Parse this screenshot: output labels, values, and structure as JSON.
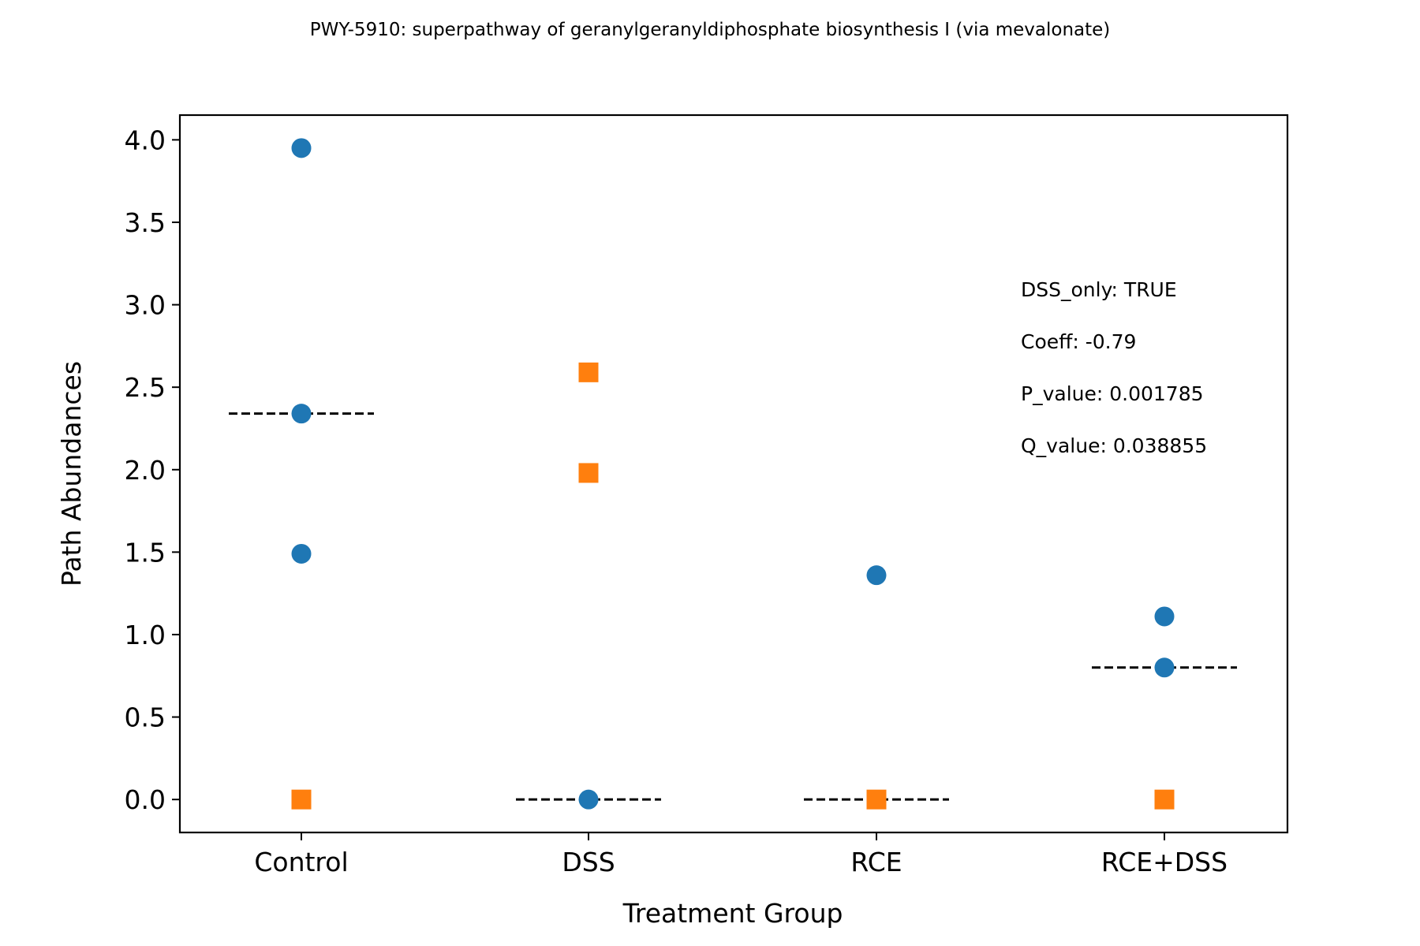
{
  "chart_data": {
    "type": "scatter",
    "title": "PWY-5910: superpathway of geranylgeranyldiphosphate biosynthesis I (via mevalonate)",
    "xlabel": "Treatment Group",
    "ylabel": "Path Abundances",
    "categories": [
      "Control",
      "DSS",
      "RCE",
      "RCE+DSS"
    ],
    "ylim": [
      -0.2,
      4.15
    ],
    "yticks": [
      "0.0",
      "0.5",
      "1.0",
      "1.5",
      "2.0",
      "2.5",
      "3.0",
      "3.5",
      "4.0"
    ],
    "grid": false,
    "series": [
      {
        "marker": "circle",
        "color": "#1f77b4",
        "points": [
          {
            "category": "Control",
            "y": 3.95
          },
          {
            "category": "Control",
            "y": 2.34
          },
          {
            "category": "Control",
            "y": 1.49
          },
          {
            "category": "DSS",
            "y": 0.0
          },
          {
            "category": "RCE",
            "y": 1.36
          },
          {
            "category": "RCE+DSS",
            "y": 1.11
          },
          {
            "category": "RCE+DSS",
            "y": 0.8
          }
        ]
      },
      {
        "marker": "square",
        "color": "#ff7f0e",
        "points": [
          {
            "category": "Control",
            "y": 0.0
          },
          {
            "category": "DSS",
            "y": 2.59
          },
          {
            "category": "DSS",
            "y": 1.98
          },
          {
            "category": "RCE",
            "y": 0.0
          },
          {
            "category": "RCE+DSS",
            "y": 0.0
          }
        ]
      }
    ],
    "medians": [
      {
        "category": "Control",
        "y": 2.34
      },
      {
        "category": "DSS",
        "y": 0.0
      },
      {
        "category": "RCE",
        "y": 0.0
      },
      {
        "category": "RCE+DSS",
        "y": 0.8
      }
    ],
    "annotations": [
      "DSS_only: TRUE",
      "Coeff: -0.79",
      "P_value: 0.001785",
      "Q_value: 0.038855"
    ]
  }
}
